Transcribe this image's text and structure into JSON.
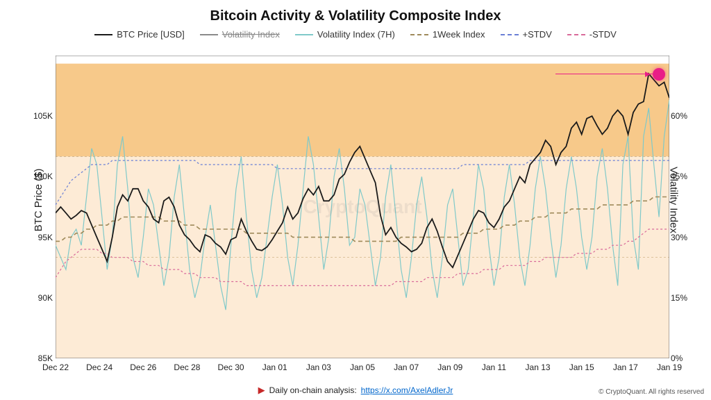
{
  "title": "Bitcoin Activity & Volatility Composite Index",
  "legend": {
    "btc_price": "BTC Price [USD]",
    "vol_idx": "Volatility Index",
    "vol_7h": "Volatility Index (7H)",
    "week_idx": "1Week Index",
    "p_stdv": "+STDV",
    "n_stdv": "-STDV"
  },
  "axes": {
    "y_left_label": "BTC Price ($)",
    "y_right_label": "Volatility Index",
    "y_left_min": 85000,
    "y_left_max": 110000,
    "y_right_min": 0,
    "y_right_max": 75,
    "y_left_ticks": [
      85000,
      90000,
      95000,
      100000,
      105000
    ],
    "y_left_tick_labels": [
      "85K",
      "90K",
      "95K",
      "100K",
      "105K"
    ],
    "y_right_ticks": [
      0,
      15,
      30,
      45,
      60
    ],
    "y_right_tick_labels": [
      "0%",
      "15%",
      "30%",
      "45%",
      "60%"
    ],
    "x_labels": [
      "Dec 22",
      "Dec 24",
      "Dec 26",
      "Dec 28",
      "Dec 30",
      "Jan 01",
      "Jan 03",
      "Jan 05",
      "Jan 07",
      "Jan 09",
      "Jan 11",
      "Jan 13",
      "Jan 15",
      "Jan 17",
      "Jan 19"
    ]
  },
  "colors": {
    "btc_price": "#1a1a1a",
    "vol_idx": "#8a8a8a",
    "vol_7h": "#7fc9c9",
    "week_idx": "#9e8a5a",
    "p_stdv": "#6a7fd6",
    "n_stdv": "#d96a9a",
    "band_outer": "#fdebd6",
    "band_inner": "#f7c98a",
    "bg": "#ffffff",
    "highlight": "#e91e87",
    "watermark": "CryptoQuant"
  },
  "bands": {
    "outer": {
      "y_from_pct": 0,
      "y_to_pct": 50
    },
    "inner": {
      "y_from_pct": 50,
      "y_to_pct": 73
    }
  },
  "series": {
    "x_count": 120,
    "btc_price": [
      97,
      97.5,
      97,
      96.5,
      96.8,
      97.2,
      97,
      96,
      95,
      94,
      93,
      95,
      97.5,
      98.5,
      98,
      99,
      99,
      98,
      97.5,
      96.5,
      96.2,
      98,
      98.3,
      97.5,
      96,
      95.2,
      94.8,
      94.2,
      93.8,
      95.2,
      95,
      94.5,
      94.2,
      93.6,
      94.8,
      95,
      96.5,
      95.5,
      94.7,
      94,
      93.9,
      94.2,
      94.8,
      95.5,
      96.2,
      97.5,
      96.5,
      97,
      98.2,
      99,
      98.5,
      99.2,
      98,
      98,
      98.5,
      99.8,
      100.2,
      101.2,
      102,
      102.5,
      101.5,
      100.5,
      99.5,
      96.8,
      95.2,
      95.8,
      95,
      94.5,
      94.2,
      93.8,
      94,
      94.5,
      95.8,
      96.5,
      95.5,
      94.2,
      93,
      92.5,
      93.5,
      94.5,
      95.5,
      96.5,
      97.2,
      97,
      96.2,
      95.8,
      96.5,
      97.5,
      98,
      99,
      100,
      99.5,
      101,
      101.5,
      102,
      103,
      102.5,
      101,
      102,
      102.5,
      104,
      104.5,
      103.5,
      104.8,
      105,
      104.2,
      103.5,
      104,
      105,
      105.5,
      105,
      103.5,
      105.3,
      106,
      106.2,
      108.5,
      108,
      107.5,
      107.8,
      106.5
    ],
    "vol_7h": [
      28,
      25,
      22,
      30,
      32,
      28,
      40,
      52,
      48,
      35,
      22,
      30,
      48,
      55,
      42,
      25,
      20,
      30,
      42,
      38,
      28,
      18,
      25,
      40,
      48,
      35,
      22,
      15,
      20,
      30,
      38,
      28,
      18,
      12,
      28,
      42,
      50,
      35,
      22,
      15,
      20,
      30,
      40,
      48,
      38,
      25,
      18,
      28,
      42,
      55,
      48,
      35,
      22,
      30,
      45,
      52,
      42,
      28,
      30,
      42,
      38,
      28,
      18,
      25,
      40,
      48,
      35,
      22,
      15,
      25,
      38,
      45,
      35,
      22,
      15,
      25,
      38,
      42,
      30,
      18,
      22,
      35,
      48,
      42,
      28,
      18,
      25,
      40,
      48,
      38,
      25,
      18,
      28,
      42,
      50,
      42,
      30,
      20,
      28,
      42,
      50,
      42,
      30,
      22,
      30,
      45,
      52,
      42,
      28,
      18,
      48,
      55,
      30,
      22,
      55,
      62,
      48,
      35,
      55,
      64
    ],
    "week_idx": [
      29,
      29,
      30,
      30,
      31,
      31,
      32,
      32,
      33,
      33,
      33,
      34,
      34,
      35,
      35,
      35,
      35,
      35,
      35,
      35,
      35,
      34,
      34,
      34,
      34,
      33,
      33,
      33,
      32,
      32,
      32,
      32,
      32,
      32,
      32,
      32,
      32,
      31,
      31,
      31,
      31,
      31,
      31,
      31,
      31,
      31,
      30,
      30,
      30,
      30,
      30,
      30,
      30,
      30,
      30,
      30,
      30,
      30,
      29,
      29,
      29,
      29,
      29,
      29,
      29,
      29,
      29,
      30,
      30,
      30,
      30,
      30,
      30,
      30,
      30,
      30,
      30,
      30,
      30,
      31,
      31,
      31,
      31,
      32,
      32,
      32,
      32,
      33,
      33,
      33,
      34,
      34,
      34,
      35,
      35,
      35,
      36,
      36,
      36,
      36,
      37,
      37,
      37,
      37,
      37,
      37,
      38,
      38,
      38,
      38,
      38,
      38,
      39,
      39,
      39,
      39,
      40,
      40,
      40,
      40
    ],
    "p_stdv": [
      38,
      40,
      42,
      44,
      45,
      46,
      47,
      48,
      48,
      48,
      48,
      49,
      49,
      49,
      49,
      49,
      49,
      49,
      49,
      49,
      49,
      49,
      49,
      49,
      49,
      49,
      49,
      49,
      48,
      48,
      48,
      48,
      48,
      48,
      48,
      48,
      48,
      48,
      48,
      48,
      48,
      48,
      48,
      47,
      47,
      47,
      47,
      47,
      47,
      47,
      47,
      47,
      47,
      47,
      47,
      47,
      47,
      47,
      47,
      47,
      47,
      47,
      47,
      47,
      47,
      47,
      47,
      47,
      47,
      47,
      47,
      47,
      47,
      47,
      47,
      47,
      47,
      47,
      47,
      48,
      48,
      48,
      48,
      48,
      48,
      48,
      48,
      48,
      48,
      48,
      48,
      48,
      49,
      49,
      49,
      49,
      49,
      49,
      49,
      49,
      49,
      49,
      49,
      49,
      49,
      49,
      49,
      49,
      49,
      49,
      49,
      49,
      49,
      49,
      49,
      49,
      49,
      49,
      49,
      49
    ],
    "n_stdv": [
      20,
      22,
      24,
      25,
      26,
      27,
      27,
      27,
      27,
      26,
      26,
      25,
      25,
      25,
      25,
      24,
      24,
      24,
      23,
      23,
      23,
      22,
      22,
      22,
      22,
      21,
      21,
      21,
      20,
      20,
      20,
      20,
      19,
      19,
      19,
      19,
      19,
      18,
      18,
      18,
      18,
      18,
      18,
      18,
      18,
      18,
      18,
      18,
      18,
      18,
      18,
      18,
      18,
      18,
      18,
      18,
      18,
      18,
      18,
      18,
      18,
      18,
      18,
      18,
      18,
      18,
      19,
      19,
      19,
      19,
      19,
      19,
      20,
      20,
      20,
      20,
      20,
      20,
      21,
      21,
      21,
      21,
      21,
      22,
      22,
      22,
      22,
      23,
      23,
      23,
      23,
      23,
      24,
      24,
      24,
      25,
      25,
      25,
      25,
      25,
      25,
      26,
      26,
      26,
      26,
      27,
      27,
      27,
      28,
      28,
      28,
      29,
      29,
      30,
      31,
      32,
      32,
      32,
      32,
      32
    ]
  },
  "styling": {
    "line_width_btc": 1.8,
    "line_width_vol7h": 1.2,
    "line_width_week": 1.6,
    "line_width_stdv": 1.2,
    "dash_week": "6 4",
    "dash_stdv": "3 3",
    "title_fontsize": 20,
    "axis_label_fontsize": 15,
    "tick_fontsize": 12
  },
  "footer": {
    "text_prefix": "Daily on-chain analysis:",
    "link_text": "https://x.com/AxelAdlerJr",
    "copyright": "© CryptoQuant. All rights reserved"
  }
}
